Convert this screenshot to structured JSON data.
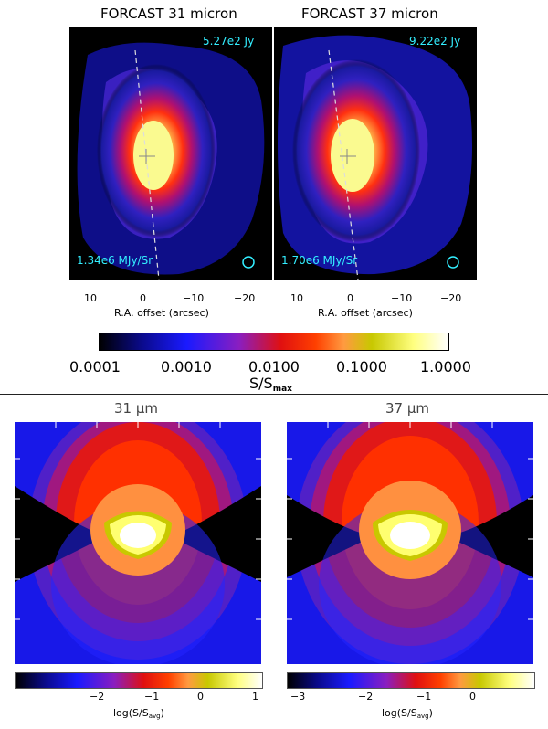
{
  "top": {
    "panels": [
      {
        "title": "FORCAST 31 micron",
        "flux_label": "5.27e2 Jy",
        "peak_label": "1.34e6 MJy/Sr",
        "xticks": [
          "10",
          "0",
          "−10",
          "−20"
        ],
        "xlabel": "R.A. offset (arcsec)"
      },
      {
        "title": "FORCAST 37 micron",
        "flux_label": "9.22e2 Jy",
        "peak_label": "1.70e6 MJy/Sr",
        "xticks": [
          "10",
          "0",
          "−10",
          "−20"
        ],
        "xlabel": "R.A. offset (arcsec)"
      }
    ],
    "colorbar": {
      "ticks": [
        "0.0001",
        "0.0010",
        "0.0100",
        "0.1000",
        "1.0000"
      ],
      "label_main": "S/S",
      "label_sub": "max"
    }
  },
  "bottom": {
    "panels": [
      {
        "title": "31 μm",
        "cb_ticks": [
          "−2",
          "−1",
          "0",
          "1"
        ],
        "cb_label_main": "log(S/S",
        "cb_label_sub": "avg",
        "cb_label_end": ")"
      },
      {
        "title": "37 μm",
        "cb_ticks": [
          "−3",
          "−2",
          "−1",
          "0"
        ],
        "cb_label_main": "log(S/S",
        "cb_label_sub": "avg",
        "cb_label_end": ")"
      }
    ]
  },
  "colors": {
    "colormap": [
      "#000000",
      "#0a0a8a",
      "#1a1aff",
      "#7a1ec8",
      "#e01010",
      "#ff3000",
      "#ff8a30",
      "#d8d800",
      "#ffff80",
      "#ffffff"
    ],
    "annotation": "#33eeff"
  }
}
